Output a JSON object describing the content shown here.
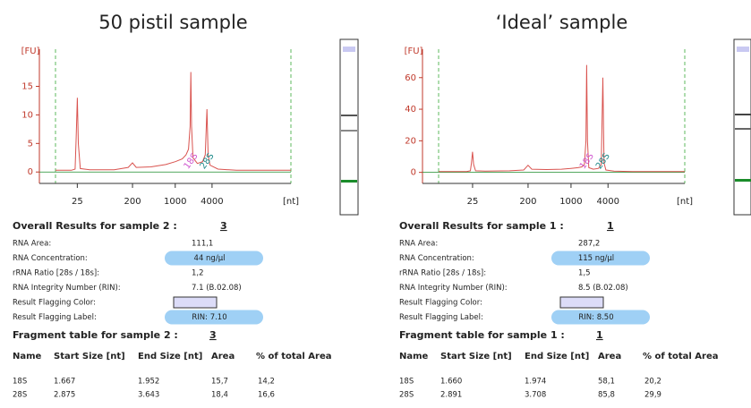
{
  "chart_data": [
    {
      "type": "line",
      "title": "50 pistil sample",
      "ylabel": "[FU]",
      "xlabel": "[nt]",
      "xscale": "log",
      "xlim": [
        11,
        78000
      ],
      "xticks": [
        25,
        200,
        1000,
        4000
      ],
      "ylim": [
        -2,
        21.5
      ],
      "yticks": [
        0,
        5,
        10,
        15
      ],
      "x": [
        11,
        20,
        23,
        24,
        25,
        26,
        28,
        40,
        100,
        170,
        200,
        230,
        400,
        700,
        1000,
        1300,
        1500,
        1650,
        1750,
        1800,
        1850,
        1950,
        2300,
        2800,
        3100,
        3300,
        3450,
        3700,
        5000,
        10000,
        30000,
        78000
      ],
      "series": [
        {
          "color": "#d9534f",
          "values": [
            0.3,
            0.3,
            0.5,
            6,
            13,
            5,
            0.6,
            0.4,
            0.4,
            0.8,
            1.6,
            0.8,
            0.9,
            1.3,
            1.8,
            2.3,
            3.0,
            4.0,
            8,
            17.5,
            8,
            2.5,
            1.5,
            1.8,
            3,
            11,
            3,
            1.2,
            0.5,
            0.3,
            0.3,
            0.3
          ]
        }
      ],
      "annotations": [
        {
          "text": "18S",
          "x": 1800
        },
        {
          "text": "28S",
          "x": 3300
        }
      ]
    },
    {
      "type": "line",
      "title": "‘Ideal’ sample",
      "ylabel": "[FU]",
      "xlabel": "[nt]",
      "xscale": "log",
      "xlim": [
        7,
        71000
      ],
      "xticks": [
        25,
        200,
        1000,
        4000
      ],
      "ylim": [
        -7,
        78
      ],
      "yticks": [
        0,
        20,
        40,
        60
      ],
      "x": [
        7,
        20,
        23,
        24,
        25,
        26,
        28,
        40,
        100,
        170,
        200,
        230,
        400,
        700,
        1000,
        1300,
        1500,
        1650,
        1750,
        1800,
        1850,
        1950,
        2300,
        2800,
        3100,
        3300,
        3450,
        3700,
        5000,
        10000,
        30000,
        71000
      ],
      "series": [
        {
          "color": "#d9534f",
          "values": [
            0.5,
            0.5,
            1,
            6,
            13,
            5,
            1,
            0.8,
            1,
            1.5,
            4.5,
            2,
            1.8,
            2,
            2.5,
            3,
            3.5,
            5,
            20,
            68,
            20,
            3,
            2,
            2.5,
            5,
            60,
            6,
            1.5,
            0.8,
            0.5,
            0.5,
            0.5
          ]
        }
      ],
      "annotations": [
        {
          "text": "18S",
          "x": 1800
        },
        {
          "text": "28S",
          "x": 3300
        }
      ]
    }
  ],
  "results": [
    {
      "overall_label": "Overall Results for sample 2 :",
      "overall_value": "3",
      "fields": [
        {
          "label": "RNA Area:",
          "value": "111,1"
        },
        {
          "label": "RNA Concentration:",
          "value": "44 ng/µl"
        },
        {
          "label": "rRNA Ratio [28s / 18s]:",
          "value": "1,2"
        },
        {
          "label": "RNA Integrity Number (RIN):",
          "value": "7.1   (B.02.08)"
        },
        {
          "label": "Result Flagging Color:"
        },
        {
          "label": "Result Flagging Label:",
          "value": "RIN: 7.10"
        }
      ],
      "fragment_label": "Fragment table for sample 2 :",
      "fragment_value": "3",
      "columns": [
        "Name",
        "Start Size [nt]",
        "End Size [nt]",
        "Area",
        "% of total Area"
      ],
      "rows": [
        [
          "18S",
          "1.667",
          "1.952",
          "15,7",
          "14,2"
        ],
        [
          "28S",
          "2.875",
          "3.643",
          "18,4",
          "16,6"
        ]
      ]
    },
    {
      "overall_label": "Overall Results for sample 1 :",
      "overall_value": "1",
      "fields": [
        {
          "label": "RNA Area:",
          "value": "287,2"
        },
        {
          "label": "RNA Concentration:",
          "value": "115 ng/µl"
        },
        {
          "label": "rRNA Ratio [28s / 18s]:",
          "value": "1,5"
        },
        {
          "label": "RNA Integrity Number (RIN):",
          "value": "8.5   (B.02.08)"
        },
        {
          "label": "Result Flagging Color:"
        },
        {
          "label": "Result Flagging Label:",
          "value": "RIN: 8.50"
        }
      ],
      "fragment_label": "Fragment table for sample 1 :",
      "fragment_value": "1",
      "columns": [
        "Name",
        "Start Size [nt]",
        "End Size [nt]",
        "Area",
        "% of total Area"
      ],
      "rows": [
        [
          "18S",
          "1.660",
          "1.974",
          "58,1",
          "20,2"
        ],
        [
          "28S",
          "2.891",
          "3.708",
          "85,8",
          "29,9"
        ]
      ]
    }
  ]
}
